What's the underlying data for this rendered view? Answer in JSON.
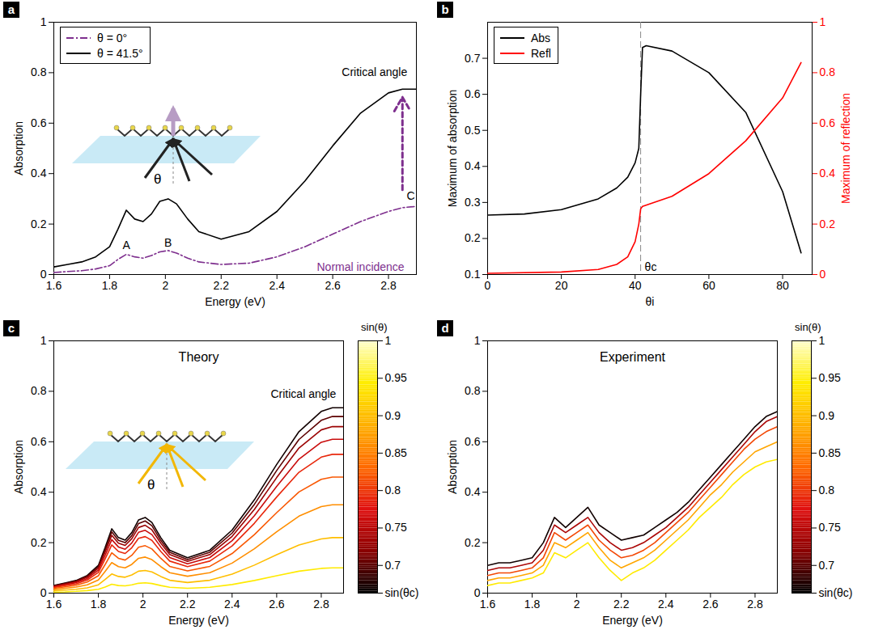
{
  "chart_data": [
    {
      "panel_label": "a",
      "type": "line",
      "xlabel": "Energy (eV)",
      "ylabel": "Absorption",
      "xlim": [
        1.6,
        2.9
      ],
      "xticks": [
        1.6,
        1.8,
        2,
        2.2,
        2.4,
        2.6,
        2.8
      ],
      "ylim": [
        0,
        1
      ],
      "yticks": [
        0,
        0.2,
        0.4,
        0.6,
        0.8,
        1
      ],
      "legend": "top-left",
      "x": [
        1.6,
        1.65,
        1.7,
        1.75,
        1.8,
        1.83,
        1.86,
        1.89,
        1.92,
        1.95,
        1.98,
        2.01,
        2.04,
        2.08,
        2.12,
        2.2,
        2.3,
        2.4,
        2.5,
        2.6,
        2.7,
        2.8,
        2.85,
        2.9
      ],
      "series": [
        {
          "name": "θ = 0°",
          "color": "#7e2f8e",
          "line_style": "dashdot",
          "values": [
            0.008,
            0.012,
            0.015,
            0.022,
            0.035,
            0.06,
            0.08,
            0.07,
            0.065,
            0.075,
            0.09,
            0.095,
            0.085,
            0.065,
            0.05,
            0.04,
            0.045,
            0.07,
            0.11,
            0.16,
            0.21,
            0.25,
            0.265,
            0.27
          ]
        },
        {
          "name": "θ = 41.5°",
          "color": "#000000",
          "line_style": "solid",
          "values": [
            0.03,
            0.04,
            0.05,
            0.07,
            0.11,
            0.18,
            0.255,
            0.22,
            0.21,
            0.24,
            0.29,
            0.3,
            0.28,
            0.22,
            0.17,
            0.14,
            0.17,
            0.25,
            0.37,
            0.51,
            0.64,
            0.72,
            0.735,
            0.735
          ]
        }
      ],
      "annotations": [
        {
          "text": "Critical angle",
          "x": 2.75,
          "y": 0.8
        },
        {
          "text": "Normal incidence",
          "x": 2.7,
          "y": 0.03,
          "color": "#7e2f8e"
        },
        {
          "text": "A",
          "x": 1.86,
          "y": 0.115
        },
        {
          "text": "B",
          "x": 2.01,
          "y": 0.125
        },
        {
          "text": "C",
          "x": 2.88,
          "y": 0.31
        },
        {
          "text": "θ"
        }
      ]
    },
    {
      "panel_label": "b",
      "type": "line",
      "xlabel": "θi",
      "ylabel": "Maximum of absorption",
      "y2label": "Maximum of reflection",
      "xlim": [
        0,
        88
      ],
      "xticks": [
        0,
        20,
        40,
        60,
        80
      ],
      "ylim": [
        0.1,
        0.8
      ],
      "yticks": [
        0.1,
        0.2,
        0.3,
        0.4,
        0.5,
        0.6,
        0.7
      ],
      "y2lim": [
        0,
        1
      ],
      "y2ticks": [
        0,
        0.2,
        0.4,
        0.6,
        0.8,
        1
      ],
      "legend": "top-left",
      "series": [
        {
          "name": "Abs",
          "color": "#000000",
          "line_style": "solid",
          "x": [
            0,
            10,
            20,
            30,
            35,
            38,
            40,
            41,
            41.5,
            42,
            43,
            50,
            60,
            70,
            80,
            85
          ],
          "values": [
            0.265,
            0.268,
            0.28,
            0.31,
            0.34,
            0.37,
            0.41,
            0.45,
            0.6,
            0.73,
            0.735,
            0.72,
            0.66,
            0.55,
            0.33,
            0.16
          ]
        },
        {
          "name": "Refl",
          "color": "#ff0000",
          "line_style": "solid",
          "axis": "y2",
          "x": [
            0,
            20,
            30,
            35,
            38,
            40,
            41,
            41.5,
            42,
            50,
            60,
            70,
            80,
            85
          ],
          "values": [
            0.005,
            0.01,
            0.02,
            0.04,
            0.07,
            0.13,
            0.2,
            0.26,
            0.27,
            0.31,
            0.4,
            0.53,
            0.7,
            0.84
          ]
        }
      ],
      "annotations": [
        {
          "text": "θc",
          "x": 41.5,
          "y": 0.12
        }
      ]
    },
    {
      "panel_label": "c",
      "type": "line",
      "title": "Theory",
      "xlabel": "Energy (eV)",
      "ylabel": "Absorption",
      "xlim": [
        1.6,
        2.9
      ],
      "xticks": [
        1.6,
        1.8,
        2,
        2.2,
        2.4,
        2.6,
        2.8
      ],
      "ylim": [
        0,
        1
      ],
      "yticks": [
        0,
        0.2,
        0.4,
        0.6,
        0.8,
        1
      ],
      "x": [
        1.6,
        1.65,
        1.7,
        1.75,
        1.8,
        1.83,
        1.86,
        1.89,
        1.92,
        1.95,
        1.98,
        2.01,
        2.04,
        2.08,
        2.12,
        2.2,
        2.3,
        2.4,
        2.5,
        2.6,
        2.7,
        2.8,
        2.85,
        2.9
      ],
      "series": [
        {
          "sin_theta": 0.67,
          "values": [
            0.03,
            0.04,
            0.05,
            0.07,
            0.11,
            0.18,
            0.255,
            0.22,
            0.21,
            0.24,
            0.29,
            0.3,
            0.28,
            0.22,
            0.17,
            0.14,
            0.17,
            0.25,
            0.37,
            0.51,
            0.64,
            0.72,
            0.735,
            0.735
          ]
        },
        {
          "sin_theta": 0.7,
          "values": [
            0.029,
            0.038,
            0.048,
            0.067,
            0.105,
            0.171,
            0.243,
            0.209,
            0.2,
            0.228,
            0.276,
            0.286,
            0.267,
            0.209,
            0.162,
            0.133,
            0.162,
            0.238,
            0.352,
            0.486,
            0.609,
            0.685,
            0.7,
            0.7
          ]
        },
        {
          "sin_theta": 0.73,
          "values": [
            0.027,
            0.036,
            0.045,
            0.063,
            0.099,
            0.162,
            0.229,
            0.198,
            0.189,
            0.216,
            0.26,
            0.269,
            0.251,
            0.198,
            0.153,
            0.126,
            0.153,
            0.225,
            0.332,
            0.458,
            0.575,
            0.647,
            0.66,
            0.66
          ]
        },
        {
          "sin_theta": 0.76,
          "values": [
            0.025,
            0.033,
            0.042,
            0.058,
            0.091,
            0.149,
            0.212,
            0.183,
            0.174,
            0.199,
            0.241,
            0.249,
            0.232,
            0.183,
            0.141,
            0.116,
            0.141,
            0.208,
            0.307,
            0.423,
            0.531,
            0.598,
            0.61,
            0.61
          ]
        },
        {
          "sin_theta": 0.79,
          "values": [
            0.022,
            0.03,
            0.037,
            0.052,
            0.082,
            0.135,
            0.191,
            0.165,
            0.157,
            0.18,
            0.217,
            0.224,
            0.209,
            0.165,
            0.127,
            0.105,
            0.127,
            0.187,
            0.277,
            0.381,
            0.479,
            0.539,
            0.55,
            0.55
          ]
        },
        {
          "sin_theta": 0.82,
          "values": [
            0.019,
            0.025,
            0.031,
            0.044,
            0.069,
            0.113,
            0.16,
            0.138,
            0.131,
            0.15,
            0.182,
            0.188,
            0.175,
            0.138,
            0.106,
            0.088,
            0.106,
            0.157,
            0.232,
            0.319,
            0.401,
            0.451,
            0.46,
            0.46
          ]
        },
        {
          "sin_theta": 0.86,
          "values": [
            0.014,
            0.019,
            0.024,
            0.033,
            0.052,
            0.086,
            0.121,
            0.105,
            0.1,
            0.114,
            0.138,
            0.143,
            0.133,
            0.105,
            0.081,
            0.067,
            0.081,
            0.119,
            0.176,
            0.243,
            0.305,
            0.343,
            0.35,
            0.35
          ]
        },
        {
          "sin_theta": 0.9,
          "values": [
            0.009,
            0.012,
            0.015,
            0.021,
            0.033,
            0.054,
            0.076,
            0.066,
            0.063,
            0.072,
            0.087,
            0.09,
            0.084,
            0.066,
            0.051,
            0.042,
            0.051,
            0.075,
            0.111,
            0.152,
            0.191,
            0.215,
            0.22,
            0.22
          ]
        },
        {
          "sin_theta": 0.94,
          "values": [
            0.004,
            0.005,
            0.007,
            0.01,
            0.015,
            0.024,
            0.035,
            0.03,
            0.029,
            0.033,
            0.039,
            0.041,
            0.038,
            0.03,
            0.023,
            0.019,
            0.023,
            0.034,
            0.05,
            0.069,
            0.087,
            0.098,
            0.1,
            0.1
          ]
        }
      ],
      "colorbar": {
        "label": "sin(θ)",
        "range": [
          0.663,
          1
        ],
        "ticks": [
          {
            "value": 0.663,
            "label": "sin(θc)"
          },
          0.7,
          0.75,
          0.8,
          0.85,
          0.9,
          0.95,
          1
        ],
        "colors": [
          "#000000",
          "#8b0000",
          "#e01010",
          "#ff6a00",
          "#ffb000",
          "#ffee00",
          "#ffffd0"
        ]
      },
      "annotations": [
        {
          "text": "Critical angle",
          "x": 2.72,
          "y": 0.79
        },
        {
          "text": "θ"
        }
      ]
    },
    {
      "panel_label": "d",
      "type": "line",
      "title": "Experiment",
      "xlabel": "Energy (eV)",
      "ylabel": "Absorption",
      "xlim": [
        1.6,
        2.9
      ],
      "xticks": [
        1.6,
        1.8,
        2,
        2.2,
        2.4,
        2.6,
        2.8
      ],
      "ylim": [
        0,
        1
      ],
      "yticks": [
        0,
        0.2,
        0.4,
        0.6,
        0.8,
        1
      ],
      "x": [
        1.6,
        1.65,
        1.7,
        1.75,
        1.8,
        1.85,
        1.9,
        1.95,
        2,
        2.05,
        2.1,
        2.15,
        2.2,
        2.25,
        2.3,
        2.35,
        2.4,
        2.45,
        2.5,
        2.55,
        2.6,
        2.65,
        2.7,
        2.75,
        2.8,
        2.85,
        2.9
      ],
      "series": [
        {
          "sin_theta": 0.67,
          "values": [
            0.11,
            0.12,
            0.12,
            0.13,
            0.14,
            0.2,
            0.3,
            0.26,
            0.3,
            0.34,
            0.27,
            0.24,
            0.21,
            0.22,
            0.23,
            0.26,
            0.29,
            0.32,
            0.36,
            0.41,
            0.46,
            0.51,
            0.56,
            0.61,
            0.66,
            0.7,
            0.72
          ]
        },
        {
          "sin_theta": 0.74,
          "values": [
            0.09,
            0.1,
            0.1,
            0.11,
            0.12,
            0.17,
            0.27,
            0.24,
            0.27,
            0.3,
            0.24,
            0.2,
            0.17,
            0.18,
            0.2,
            0.23,
            0.26,
            0.3,
            0.34,
            0.39,
            0.44,
            0.49,
            0.54,
            0.59,
            0.64,
            0.68,
            0.7
          ]
        },
        {
          "sin_theta": 0.81,
          "values": [
            0.07,
            0.08,
            0.08,
            0.09,
            0.1,
            0.14,
            0.24,
            0.21,
            0.24,
            0.27,
            0.21,
            0.17,
            0.14,
            0.15,
            0.17,
            0.2,
            0.24,
            0.28,
            0.32,
            0.37,
            0.42,
            0.47,
            0.52,
            0.57,
            0.61,
            0.64,
            0.66
          ]
        },
        {
          "sin_theta": 0.88,
          "values": [
            0.05,
            0.06,
            0.06,
            0.07,
            0.08,
            0.11,
            0.2,
            0.18,
            0.21,
            0.24,
            0.18,
            0.13,
            0.1,
            0.12,
            0.14,
            0.17,
            0.21,
            0.25,
            0.29,
            0.34,
            0.39,
            0.43,
            0.48,
            0.52,
            0.56,
            0.58,
            0.6
          ]
        },
        {
          "sin_theta": 0.94,
          "values": [
            0.03,
            0.04,
            0.04,
            0.05,
            0.06,
            0.08,
            0.16,
            0.14,
            0.17,
            0.2,
            0.14,
            0.09,
            0.05,
            0.08,
            0.1,
            0.13,
            0.17,
            0.21,
            0.25,
            0.3,
            0.34,
            0.38,
            0.43,
            0.47,
            0.5,
            0.52,
            0.53
          ]
        }
      ],
      "colorbar": {
        "label": "sin(θ)",
        "range": [
          0.663,
          1
        ],
        "ticks": [
          {
            "value": 0.663,
            "label": "sin(θc)"
          },
          0.7,
          0.75,
          0.8,
          0.85,
          0.9,
          0.95,
          1
        ],
        "colors": [
          "#000000",
          "#8b0000",
          "#e01010",
          "#ff6a00",
          "#ffb000",
          "#ffee00",
          "#ffffd0"
        ]
      },
      "annotations": []
    }
  ]
}
